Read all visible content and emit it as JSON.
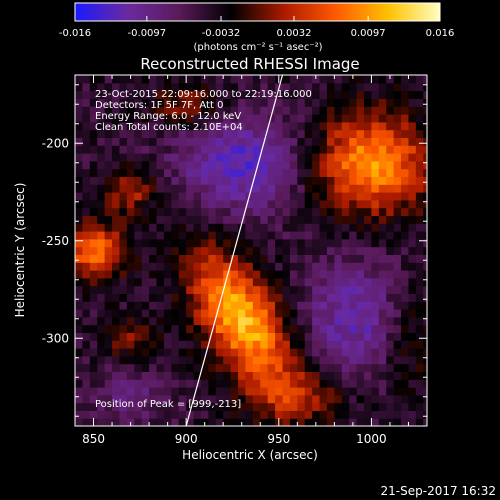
{
  "chart_data": {
    "type": "heatmap",
    "title": "Reconstructed RHESSI Image",
    "xlabel": "Heliocentric X (arcsec)",
    "ylabel": "Heliocentric Y (arcsec)",
    "xlim": [
      840,
      1030
    ],
    "ylim": [
      -345,
      -165
    ],
    "x_ticks": [
      "850",
      "900",
      "950",
      "1000"
    ],
    "x_tick_values": [
      850,
      900,
      950,
      1000
    ],
    "y_ticks": [
      "-200",
      "-250",
      "-300"
    ],
    "y_tick_values": [
      -200,
      -250,
      -300
    ],
    "colorbar": {
      "min": -0.016,
      "max": 0.016,
      "tick_labels": [
        "-0.016",
        "-0.0097",
        "-0.0032",
        "0.0032",
        "0.0097",
        "0.016"
      ],
      "tick_values": [
        -0.016,
        -0.0097,
        -0.0032,
        0.0032,
        0.0097,
        0.016
      ],
      "units_label": "(photons cm⁻² s⁻¹ asec⁻²)",
      "colors": [
        "#1a1aff",
        "#6a2aa0",
        "#5a1a5a",
        "#000000",
        "#aa1a00",
        "#ff5a00",
        "#ffc000",
        "#ffffc0"
      ]
    },
    "annotations": [
      "23-Oct-2015 22:09:16.000 to 22:19:16.000",
      "Detectors: 1F 5F 7F, Att 0",
      "Energy Range: 6.0 - 12.0 keV",
      "Clean    Total counts: 2.10E+04"
    ],
    "peak_label": "Position of Peak = [999,-213]",
    "peak": [
      999,
      -213
    ],
    "limb_line": [
      [
        900,
        -345
      ],
      [
        952,
        -165
      ]
    ],
    "emission_sources": [
      {
        "x": 930,
        "y": -290,
        "sx": 28,
        "sy": 14,
        "angle": -55,
        "amp": 0.016
      },
      {
        "x": 1000,
        "y": -210,
        "sx": 22,
        "sy": 18,
        "angle": 0,
        "amp": 0.014
      },
      {
        "x": 850,
        "y": -255,
        "sx": 12,
        "sy": 10,
        "angle": 0,
        "amp": 0.012
      },
      {
        "x": 870,
        "y": -225,
        "sx": 10,
        "sy": 8,
        "angle": 20,
        "amp": 0.007
      },
      {
        "x": 900,
        "y": -180,
        "sx": 14,
        "sy": 8,
        "angle": 0,
        "amp": 0.006
      },
      {
        "x": 870,
        "y": -300,
        "sx": 10,
        "sy": 8,
        "angle": 0,
        "amp": 0.005
      },
      {
        "x": 960,
        "y": -330,
        "sx": 20,
        "sy": 10,
        "angle": 0,
        "amp": 0.006
      },
      {
        "x": 1020,
        "y": -300,
        "sx": 10,
        "sy": 20,
        "angle": 0,
        "amp": 0.004
      }
    ],
    "negative_regions": [
      {
        "x": 930,
        "y": -210,
        "sx": 25,
        "sy": 18,
        "amp": -0.008
      },
      {
        "x": 990,
        "y": -290,
        "sx": 20,
        "sy": 22,
        "amp": -0.007
      },
      {
        "x": 870,
        "y": -330,
        "sx": 15,
        "sy": 10,
        "amp": -0.004
      }
    ]
  },
  "footer": {
    "date_stamp": "21-Sep-2017 16:32"
  }
}
